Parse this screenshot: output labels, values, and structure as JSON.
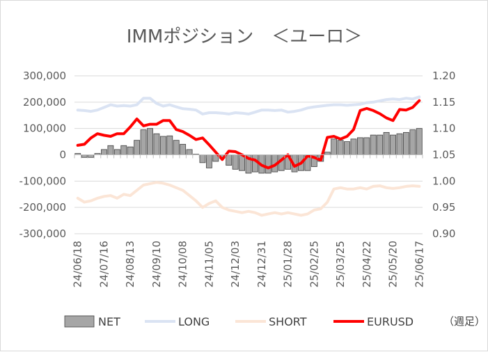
{
  "chart_data": {
    "type": "bar",
    "title": "IMMポジション　＜ユーロ＞",
    "note": "（週足）",
    "x": [
      "24/06/18",
      "24/06/25",
      "24/07/02",
      "24/07/09",
      "24/07/16",
      "24/07/23",
      "24/07/30",
      "24/08/06",
      "24/08/13",
      "24/08/20",
      "24/08/27",
      "24/09/03",
      "24/09/10",
      "24/09/17",
      "24/09/24",
      "24/10/01",
      "24/10/08",
      "24/10/15",
      "24/10/22",
      "24/10/29",
      "24/11/05",
      "24/11/12",
      "24/11/19",
      "24/11/26",
      "24/12/03",
      "24/12/10",
      "24/12/17",
      "24/12/24",
      "24/12/31",
      "25/01/07",
      "25/01/14",
      "25/01/21",
      "25/01/28",
      "25/02/04",
      "25/02/11",
      "25/02/18",
      "25/02/25",
      "25/03/04",
      "25/03/11",
      "25/03/18",
      "25/03/25",
      "25/04/01",
      "25/04/08",
      "25/04/15",
      "25/04/22",
      "25/04/29",
      "25/05/06",
      "25/05/13",
      "25/05/20",
      "25/05/27",
      "25/06/03",
      "25/06/10",
      "25/06/17"
    ],
    "x_tick_labels": [
      "24/06/18",
      "24/07/16",
      "24/08/13",
      "24/09/10",
      "24/10/08",
      "24/11/05",
      "24/12/03",
      "24/12/31",
      "25/01/28",
      "25/02/25",
      "25/03/25",
      "25/04/22",
      "25/05/20",
      "25/06/17"
    ],
    "y_left_ticks": [
      "300,000",
      "200,000",
      "100,000",
      "0",
      "-100,000",
      "-200,000",
      "-300,000"
    ],
    "y_right_ticks": [
      "1.20",
      "1.15",
      "1.10",
      "1.05",
      "1.00",
      "0.95",
      "0.90"
    ],
    "ylim_left": [
      -300000,
      300000
    ],
    "ylim_right": [
      0.9,
      1.2
    ],
    "legend_position": "bottom",
    "series": [
      {
        "name": "NET",
        "type": "bar",
        "axis": "left",
        "color": "#a6a6a6",
        "values": [
          5000,
          -10000,
          -10000,
          5000,
          20000,
          35000,
          20000,
          35000,
          30000,
          55000,
          95000,
          100000,
          80000,
          70000,
          72000,
          55000,
          40000,
          20000,
          2000,
          -30000,
          -50000,
          -25000,
          -10000,
          -40000,
          -55000,
          -60000,
          -70000,
          -65000,
          -70000,
          -70000,
          -65000,
          -60000,
          -55000,
          -65000,
          -60000,
          -60000,
          -45000,
          -25000,
          10000,
          60000,
          55000,
          50000,
          60000,
          65000,
          65000,
          75000,
          75000,
          85000,
          75000,
          80000,
          85000,
          95000,
          100000
        ]
      },
      {
        "name": "LONG",
        "type": "line",
        "axis": "left",
        "color": "#dae3f3",
        "values": [
          170000,
          168000,
          165000,
          170000,
          180000,
          190000,
          185000,
          187000,
          185000,
          190000,
          215000,
          215000,
          195000,
          185000,
          190000,
          182000,
          175000,
          173000,
          170000,
          155000,
          160000,
          160000,
          158000,
          155000,
          160000,
          158000,
          155000,
          162000,
          170000,
          170000,
          168000,
          170000,
          162000,
          165000,
          170000,
          178000,
          182000,
          185000,
          188000,
          190000,
          190000,
          188000,
          190000,
          192000,
          198000,
          200000,
          205000,
          210000,
          212000,
          210000,
          215000,
          212000,
          220000
        ]
      },
      {
        "name": "SHORT",
        "type": "line",
        "axis": "left",
        "color": "#fbe5d6",
        "values": [
          -165000,
          -180000,
          -175000,
          -165000,
          -158000,
          -155000,
          -165000,
          -150000,
          -155000,
          -135000,
          -115000,
          -110000,
          -105000,
          -108000,
          -115000,
          -125000,
          -135000,
          -155000,
          -175000,
          -200000,
          -185000,
          -175000,
          -200000,
          -210000,
          -215000,
          -220000,
          -215000,
          -220000,
          -230000,
          -225000,
          -220000,
          -225000,
          -220000,
          -225000,
          -230000,
          -225000,
          -210000,
          -205000,
          -180000,
          -130000,
          -125000,
          -130000,
          -130000,
          -125000,
          -130000,
          -120000,
          -118000,
          -125000,
          -128000,
          -125000,
          -120000,
          -118000,
          -120000
        ]
      },
      {
        "name": "EURUSD",
        "type": "line",
        "axis": "right",
        "color": "#ff0000",
        "values": [
          1.068,
          1.07,
          1.082,
          1.09,
          1.087,
          1.085,
          1.09,
          1.09,
          1.103,
          1.118,
          1.105,
          1.108,
          1.108,
          1.115,
          1.115,
          1.098,
          1.094,
          1.087,
          1.079,
          1.082,
          1.069,
          1.055,
          1.041,
          1.057,
          1.056,
          1.05,
          1.043,
          1.04,
          1.03,
          1.025,
          1.03,
          1.04,
          1.05,
          1.028,
          1.034,
          1.048,
          1.045,
          1.04,
          1.083,
          1.085,
          1.08,
          1.085,
          1.098,
          1.134,
          1.138,
          1.134,
          1.128,
          1.12,
          1.115,
          1.136,
          1.135,
          1.14,
          1.153
        ]
      }
    ]
  }
}
